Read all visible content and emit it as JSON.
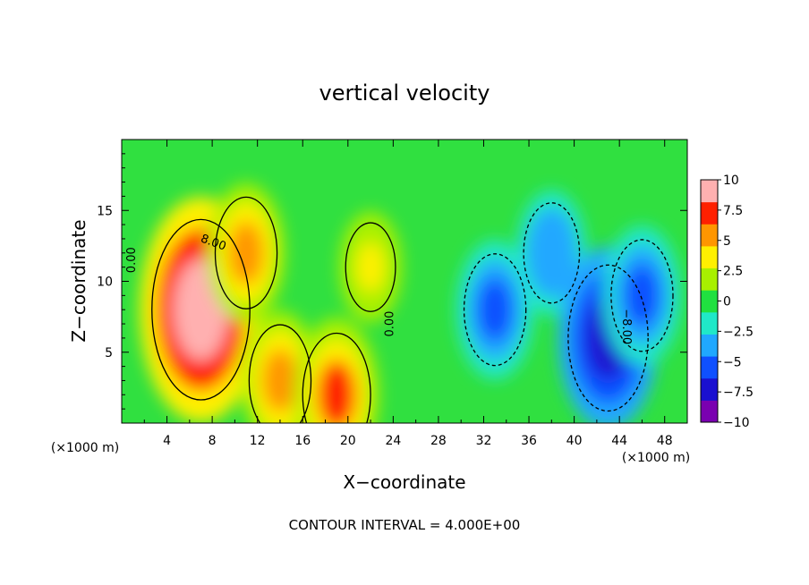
{
  "chart_data": {
    "type": "heatmap",
    "title": "vertical velocity",
    "xlabel": "X−coordinate",
    "ylabel": "Z−coordinate",
    "x_unit": "(×1000 m)",
    "xlim": [
      0,
      50
    ],
    "ylim": [
      0,
      20
    ],
    "x_ticks": [
      4,
      8,
      12,
      16,
      20,
      24,
      28,
      32,
      36,
      40,
      44,
      48
    ],
    "y_ticks": [
      5,
      10,
      15
    ],
    "colorbar": {
      "ticks": [
        10,
        7.5,
        5,
        2.5,
        0,
        -2.5,
        -5,
        -7.5,
        -10
      ],
      "tick_labels": [
        "10",
        "7.5",
        "5",
        "2.5",
        "0",
        "−2.5",
        "−5",
        "−7.5",
        "−10"
      ],
      "range": [
        -10,
        10
      ],
      "colors": [
        "#7a00b0",
        "#1a10d0",
        "#0f50ff",
        "#20a8ff",
        "#20e8c8",
        "#20e040",
        "#a8f000",
        "#fff000",
        "#ff9600",
        "#ff2000",
        "#ffb0b0"
      ]
    },
    "contour_labels": [
      "0.00",
      "8.00",
      "0.00",
      "−8.00"
    ],
    "annotation": "CONTOUR INTERVAL = 4.000E+00",
    "features": [
      {
        "x": 7,
        "z": 8,
        "w": 12
      },
      {
        "x": 11,
        "z": 12,
        "w": 6
      },
      {
        "x": 14,
        "z": 3,
        "w": 6
      },
      {
        "x": 19,
        "z": 2,
        "w": 7
      },
      {
        "x": 22,
        "z": 11,
        "w": 4
      },
      {
        "x": 33,
        "z": 8,
        "w": -6
      },
      {
        "x": 38,
        "z": 12,
        "w": -5
      },
      {
        "x": 43,
        "z": 6,
        "w": -9
      },
      {
        "x": 46,
        "z": 9,
        "w": -6
      }
    ]
  }
}
